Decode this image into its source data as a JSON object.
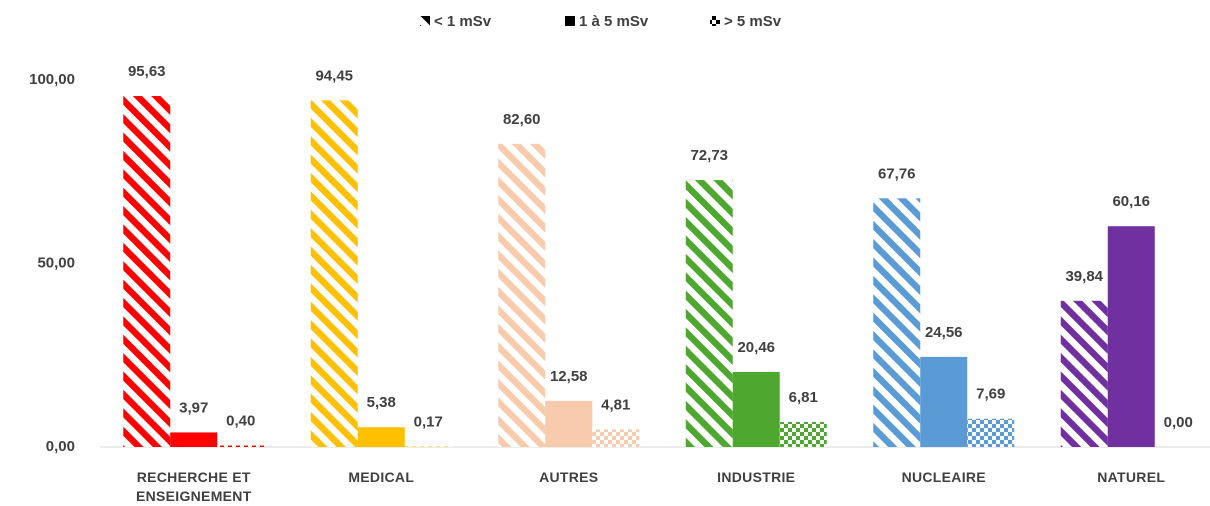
{
  "chart_data": {
    "type": "bar",
    "categories": [
      "RECHERCHE ET ENSEIGNEMENT",
      "MEDICAL",
      "AUTRES",
      "INDUSTRIE",
      "NUCLEAIRE",
      "NATUREL"
    ],
    "category_colors": [
      "#ff0000",
      "#ffc000",
      "#f8cbad",
      "#4ea72e",
      "#5b9bd5",
      "#7030a0"
    ],
    "series": [
      {
        "name": "< 1 mSv",
        "pattern": "stripes",
        "color": "#000000",
        "values": [
          95.63,
          94.45,
          82.6,
          72.73,
          67.76,
          39.84
        ],
        "value_labels": [
          "95,63",
          "94,45",
          "82,60",
          "72,73",
          "67,76",
          "39,84"
        ]
      },
      {
        "name": "1 à 5 mSv",
        "pattern": "solid",
        "color": "#000000",
        "values": [
          3.97,
          5.38,
          12.58,
          20.46,
          24.56,
          60.16
        ],
        "value_labels": [
          "3,97",
          "5,38",
          "12,58",
          "20,46",
          "24,56",
          "60,16"
        ]
      },
      {
        "name": "> 5 mSv",
        "pattern": "checker",
        "color": "#000000",
        "values": [
          0.4,
          0.17,
          4.81,
          6.81,
          7.69,
          0.0
        ],
        "value_labels": [
          "0,40",
          "0,17",
          "4,81",
          "6,81",
          "7,69",
          "0,00"
        ]
      }
    ],
    "ylim": [
      0,
      100
    ],
    "yticks": [
      {
        "value": 0,
        "label": "0,00"
      },
      {
        "value": 50,
        "label": "50,00"
      },
      {
        "value": 100,
        "label": "100,00"
      }
    ],
    "legend": "top"
  }
}
